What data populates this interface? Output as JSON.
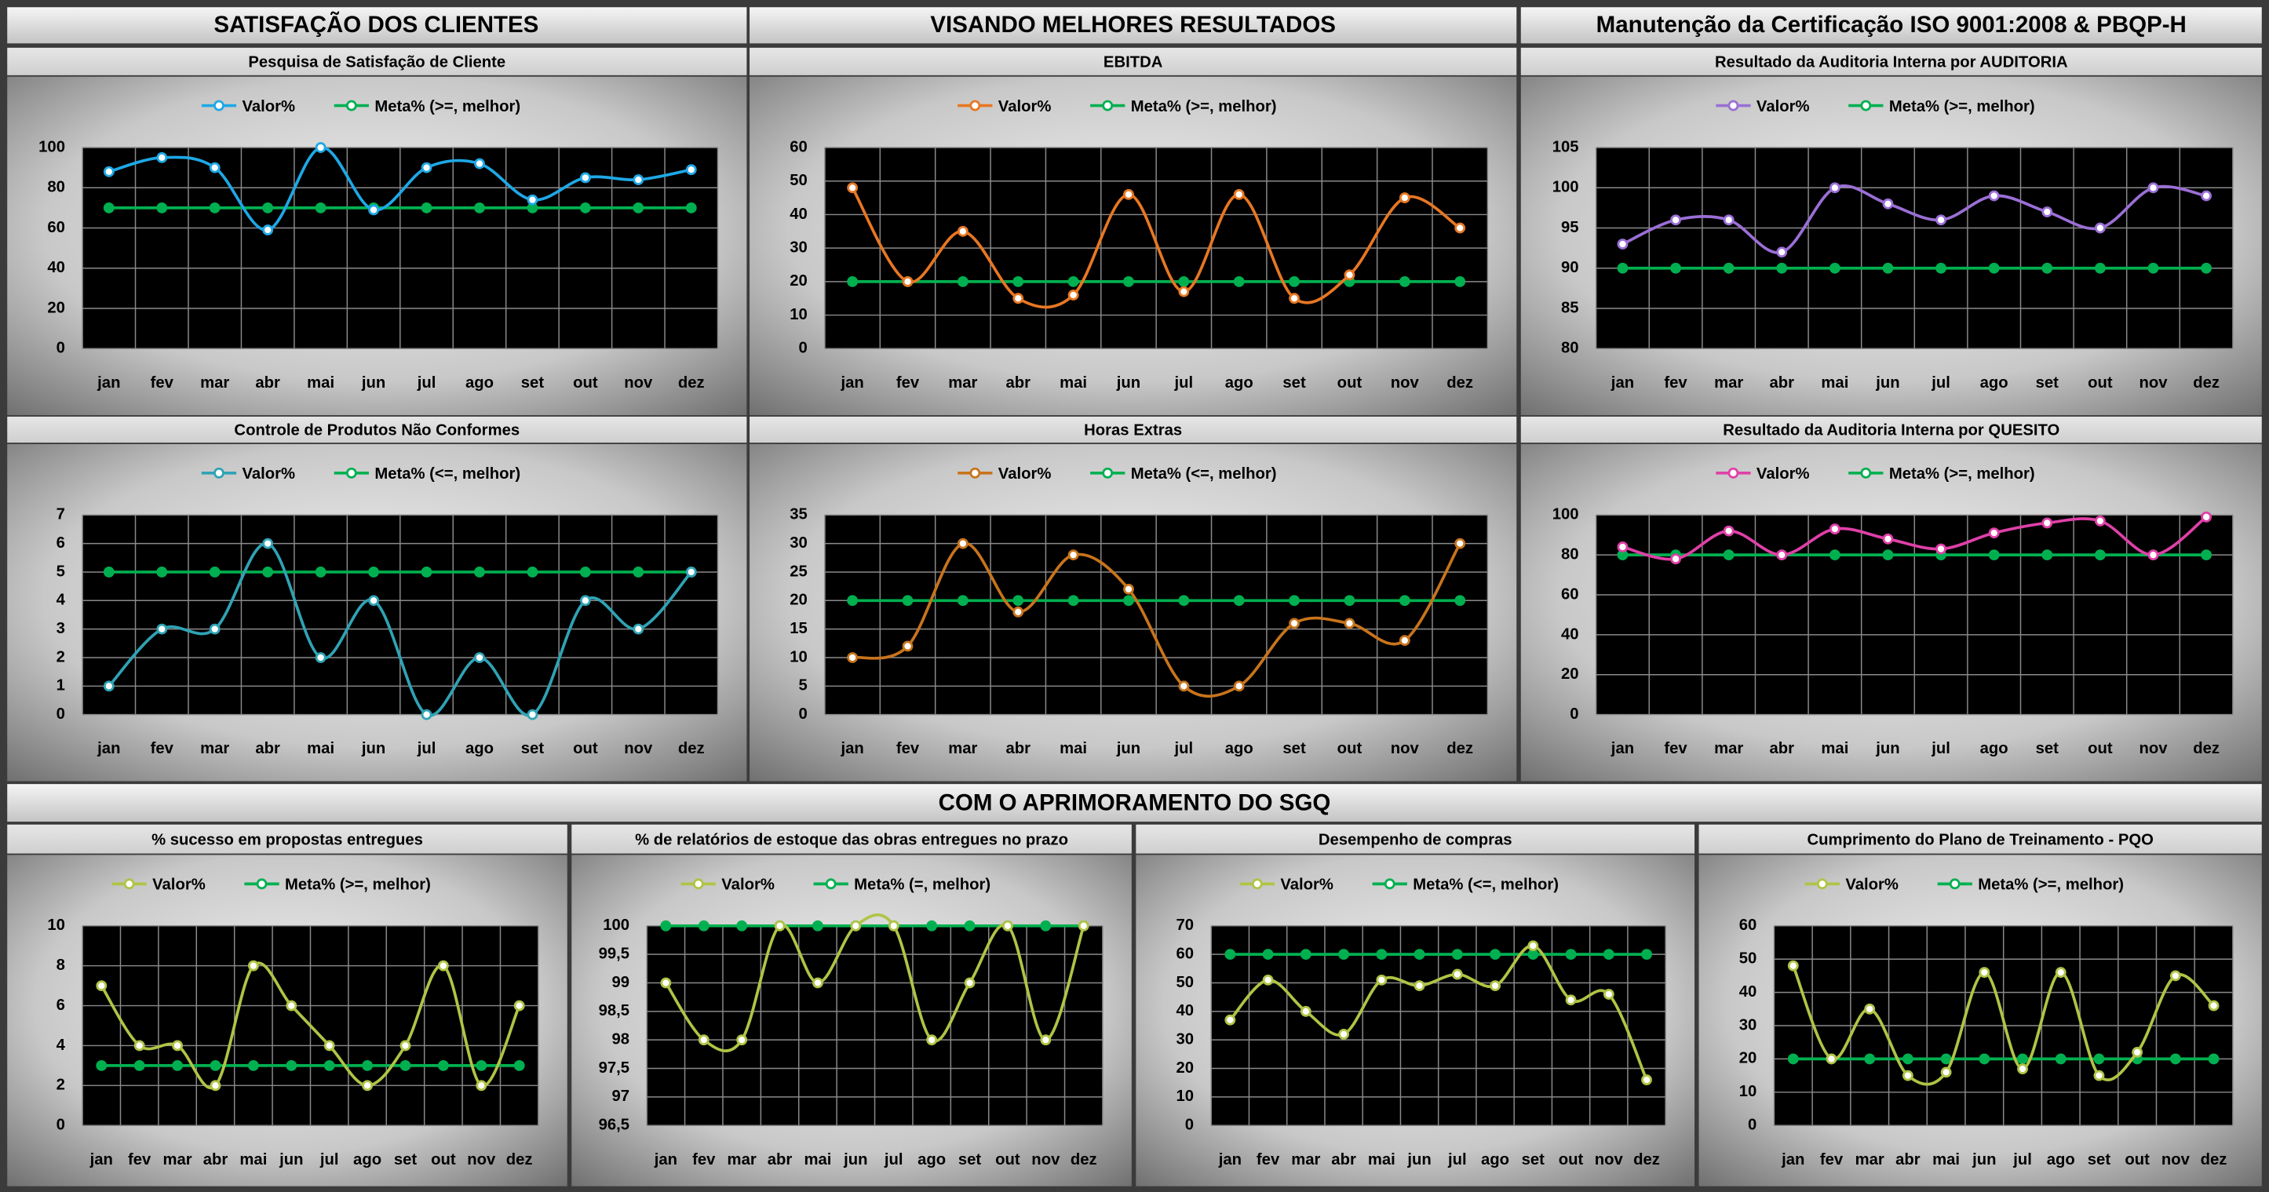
{
  "sections": [
    "SATISFAÇÃO DOS CLIENTES",
    "VISANDO MELHORES RESULTADOS",
    "Manutenção da Certificação ISO 9001:2008 & PBQP-H",
    "COM O APRIMORAMENTO DO SGQ"
  ],
  "chart_data": [
    {
      "type": "line",
      "title": "Pesquisa de Satisfação de Cliente",
      "categories": [
        "jan",
        "fev",
        "mar",
        "abr",
        "mai",
        "jun",
        "jul",
        "ago",
        "set",
        "out",
        "nov",
        "dez"
      ],
      "series": [
        {
          "name": "Valor%",
          "color": "#1ea8e6",
          "values": [
            88,
            95,
            90,
            59,
            100,
            69,
            90,
            92,
            74,
            85,
            84,
            89
          ]
        },
        {
          "name": "Meta% (>=, melhor)",
          "color": "#00b050",
          "values": [
            70,
            70,
            70,
            70,
            70,
            70,
            70,
            70,
            70,
            70,
            70,
            70
          ]
        }
      ],
      "ylim": [
        0,
        100
      ],
      "yticks": [
        0,
        20,
        40,
        60,
        80,
        100
      ],
      "grid": true
    },
    {
      "type": "line",
      "title": "EBITDA",
      "categories": [
        "jan",
        "fev",
        "mar",
        "abr",
        "mai",
        "jun",
        "jul",
        "ago",
        "set",
        "out",
        "nov",
        "dez"
      ],
      "series": [
        {
          "name": "Valor%",
          "color": "#e87722",
          "values": [
            48,
            20,
            35,
            15,
            16,
            46,
            17,
            46,
            15,
            22,
            45,
            36
          ]
        },
        {
          "name": "Meta% (>=, melhor)",
          "color": "#00b050",
          "values": [
            20,
            20,
            20,
            20,
            20,
            20,
            20,
            20,
            20,
            20,
            20,
            20
          ]
        }
      ],
      "ylim": [
        0,
        60
      ],
      "yticks": [
        0,
        10,
        20,
        30,
        40,
        50,
        60
      ],
      "grid": true
    },
    {
      "type": "line",
      "title": "Resultado da Auditoria Interna por AUDITORIA",
      "categories": [
        "jan",
        "fev",
        "mar",
        "abr",
        "mai",
        "jun",
        "jul",
        "ago",
        "set",
        "out",
        "nov",
        "dez"
      ],
      "series": [
        {
          "name": "Valor%",
          "color": "#9b6fd6",
          "values": [
            93,
            96,
            96,
            92,
            100,
            98,
            96,
            99,
            97,
            95,
            100,
            99
          ]
        },
        {
          "name": "Meta% (>=, melhor)",
          "color": "#00b050",
          "values": [
            90,
            90,
            90,
            90,
            90,
            90,
            90,
            90,
            90,
            90,
            90,
            90
          ]
        }
      ],
      "ylim": [
        80,
        105
      ],
      "yticks": [
        80,
        85,
        90,
        95,
        100,
        105
      ],
      "grid": true
    },
    {
      "type": "line",
      "title": "Controle de Produtos Não Conformes",
      "categories": [
        "jan",
        "fev",
        "mar",
        "abr",
        "mai",
        "jun",
        "jul",
        "ago",
        "set",
        "out",
        "nov",
        "dez"
      ],
      "series": [
        {
          "name": "Valor%",
          "color": "#2fa3b5",
          "values": [
            1,
            3,
            3,
            6,
            2,
            4,
            0,
            2,
            0,
            4,
            3,
            5
          ]
        },
        {
          "name": "Meta% (<=, melhor)",
          "color": "#00b050",
          "values": [
            5,
            5,
            5,
            5,
            5,
            5,
            5,
            5,
            5,
            5,
            5,
            5
          ]
        }
      ],
      "ylim": [
        0,
        7
      ],
      "yticks": [
        0,
        1,
        2,
        3,
        4,
        5,
        6,
        7
      ],
      "grid": true
    },
    {
      "type": "line",
      "title": "Horas Extras",
      "categories": [
        "jan",
        "fev",
        "mar",
        "abr",
        "mai",
        "jun",
        "jul",
        "ago",
        "set",
        "out",
        "nov",
        "dez"
      ],
      "series": [
        {
          "name": "Valor%",
          "color": "#c8741c",
          "values": [
            10,
            12,
            30,
            18,
            28,
            22,
            5,
            5,
            16,
            16,
            13,
            30
          ]
        },
        {
          "name": "Meta% (<=, melhor)",
          "color": "#00b050",
          "values": [
            20,
            20,
            20,
            20,
            20,
            20,
            20,
            20,
            20,
            20,
            20,
            20
          ]
        }
      ],
      "ylim": [
        0,
        35
      ],
      "yticks": [
        0,
        5,
        10,
        15,
        20,
        25,
        30,
        35
      ],
      "grid": true
    },
    {
      "type": "line",
      "title": "Resultado da Auditoria Interna por QUESITO",
      "categories": [
        "jan",
        "fev",
        "mar",
        "abr",
        "mai",
        "jun",
        "jul",
        "ago",
        "set",
        "out",
        "nov",
        "dez"
      ],
      "series": [
        {
          "name": "Valor%",
          "color": "#e040a8",
          "values": [
            84,
            78,
            92,
            80,
            93,
            88,
            83,
            91,
            96,
            97,
            80,
            99
          ]
        },
        {
          "name": "Meta% (>=, melhor)",
          "color": "#00b050",
          "values": [
            80,
            80,
            80,
            80,
            80,
            80,
            80,
            80,
            80,
            80,
            80,
            80
          ]
        }
      ],
      "ylim": [
        0,
        100
      ],
      "yticks": [
        0,
        20,
        40,
        60,
        80,
        100
      ],
      "grid": true
    },
    {
      "type": "line",
      "title": "% sucesso em propostas entregues",
      "categories": [
        "jan",
        "fev",
        "mar",
        "abr",
        "mai",
        "jun",
        "jul",
        "ago",
        "set",
        "out",
        "nov",
        "dez"
      ],
      "series": [
        {
          "name": "Valor%",
          "color": "#b0c445",
          "values": [
            7,
            4,
            4,
            2,
            8,
            6,
            4,
            2,
            4,
            8,
            2,
            6
          ]
        },
        {
          "name": "Meta% (>=, melhor)",
          "color": "#00b050",
          "values": [
            3,
            3,
            3,
            3,
            3,
            3,
            3,
            3,
            3,
            3,
            3,
            3
          ]
        }
      ],
      "ylim": [
        0,
        10
      ],
      "yticks": [
        0,
        2,
        4,
        6,
        8,
        10
      ],
      "grid": true
    },
    {
      "type": "line",
      "title": "% de relatórios de estoque das obras entregues no prazo",
      "categories": [
        "jan",
        "fev",
        "mar",
        "abr",
        "mai",
        "jun",
        "jul",
        "ago",
        "set",
        "out",
        "nov",
        "dez"
      ],
      "series": [
        {
          "name": "Valor%",
          "color": "#b0c445",
          "values": [
            99,
            98,
            98,
            100,
            99,
            100,
            100,
            98,
            99,
            100,
            98,
            100
          ]
        },
        {
          "name": "Meta% (=, melhor)",
          "color": "#00b050",
          "values": [
            100,
            100,
            100,
            100,
            100,
            100,
            100,
            100,
            100,
            100,
            100,
            100
          ]
        }
      ],
      "ylim": [
        96.5,
        100
      ],
      "yticks": [
        {
          "value": 96.5,
          "label": "96,5"
        },
        97,
        {
          "value": 97.5,
          "label": "97,5"
        },
        98,
        {
          "value": 98.5,
          "label": "98,5"
        },
        99,
        {
          "value": 99.5,
          "label": "99,5"
        },
        100
      ],
      "grid": true
    },
    {
      "type": "line",
      "title": "Desempenho de compras",
      "categories": [
        "jan",
        "fev",
        "mar",
        "abr",
        "mai",
        "jun",
        "jul",
        "ago",
        "set",
        "out",
        "nov",
        "dez"
      ],
      "series": [
        {
          "name": "Valor%",
          "color": "#b0c445",
          "values": [
            37,
            51,
            40,
            32,
            51,
            49,
            53,
            49,
            63,
            44,
            46,
            16
          ]
        },
        {
          "name": "Meta% (<=, melhor)",
          "color": "#00b050",
          "values": [
            60,
            60,
            60,
            60,
            60,
            60,
            60,
            60,
            60,
            60,
            60,
            60
          ]
        }
      ],
      "ylim": [
        0,
        70
      ],
      "yticks": [
        0,
        10,
        20,
        30,
        40,
        50,
        60,
        70
      ],
      "grid": true
    },
    {
      "type": "line",
      "title": "Cumprimento do Plano de Treinamento - PQO",
      "categories": [
        "jan",
        "fev",
        "mar",
        "abr",
        "mai",
        "jun",
        "jul",
        "ago",
        "set",
        "out",
        "nov",
        "dez"
      ],
      "series": [
        {
          "name": "Valor%",
          "color": "#b0c445",
          "values": [
            48,
            20,
            35,
            15,
            16,
            46,
            17,
            46,
            15,
            22,
            45,
            36
          ]
        },
        {
          "name": "Meta% (>=, melhor)",
          "color": "#00b050",
          "values": [
            20,
            20,
            20,
            20,
            20,
            20,
            20,
            20,
            20,
            20,
            20,
            20
          ]
        }
      ],
      "ylim": [
        0,
        60
      ],
      "yticks": [
        0,
        10,
        20,
        30,
        40,
        50,
        60
      ],
      "grid": true
    }
  ]
}
